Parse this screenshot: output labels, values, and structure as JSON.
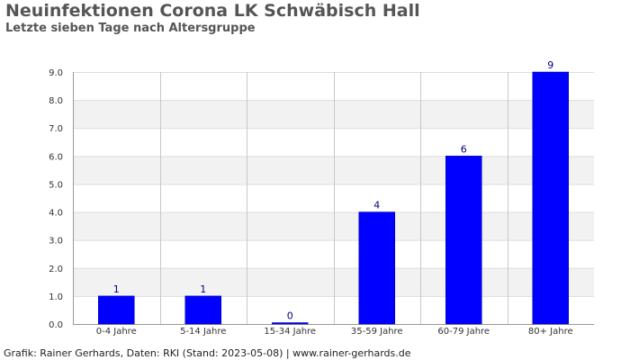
{
  "header": {
    "title": "Neuinfektionen Corona LK Schwäbisch Hall",
    "subtitle": "Letzte sieben Tage nach Altersgruppe"
  },
  "footer": {
    "credit": "Grafik: Rainer Gerhards, Daten: RKI (Stand: 2023-05-08) | www.rainer-gerhards.de"
  },
  "colors": {
    "bar": "#0000ff",
    "band_fill": "#f2f2f2",
    "grid_line": "#dddddd",
    "axis": "#999999"
  },
  "chart_data": {
    "type": "bar",
    "categories": [
      "0-4 Jahre",
      "5-14 Jahre",
      "15-34 Jahre",
      "35-59 Jahre",
      "60-79 Jahre",
      "80+ Jahre"
    ],
    "values": [
      1,
      1,
      0,
      4,
      6,
      9
    ],
    "data_labels": [
      "1",
      "1",
      "0",
      "4",
      "6",
      "9"
    ],
    "yticks": [
      "0.0",
      "1.0",
      "2.0",
      "3.0",
      "4.0",
      "5.0",
      "6.0",
      "7.0",
      "8.0",
      "9.0"
    ],
    "ylim": [
      0,
      9
    ],
    "title": "Neuinfektionen Corona LK Schwäbisch Hall",
    "subtitle": "Letzte sieben Tage nach Altersgruppe",
    "xlabel": "",
    "ylabel": "",
    "grid": true,
    "legend": "none"
  }
}
